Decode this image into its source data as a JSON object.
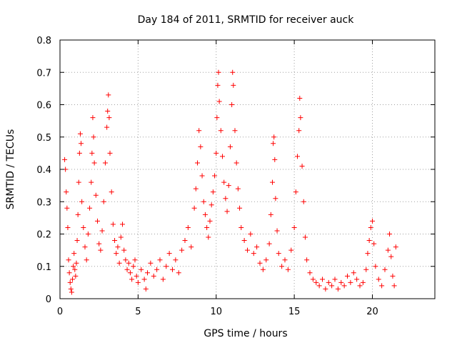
{
  "chart_data": {
    "type": "scatter",
    "title": "Day 184 of 2011, SRMTID for receiver auck",
    "xlabel": "GPS time / hours",
    "ylabel": "SRMTID / TECUs",
    "xlim": [
      0,
      24
    ],
    "ylim": [
      0,
      0.8
    ],
    "x_ticks": [
      0,
      5,
      10,
      15,
      20
    ],
    "x_tick_labels": [
      "0",
      "5",
      "10",
      "15",
      "20"
    ],
    "y_ticks": [
      0,
      0.1,
      0.2,
      0.3,
      0.4,
      0.5,
      0.6,
      0.7,
      0.8
    ],
    "y_tick_labels": [
      "0",
      "0.1",
      "0.2",
      "0.3",
      "0.4",
      "0.5",
      "0.6",
      "0.7",
      "0.8"
    ],
    "grid": true,
    "marker": "plus",
    "color": "#ff0000",
    "series": [
      {
        "name": "SRMTID",
        "points": [
          [
            0.3,
            0.43
          ],
          [
            0.35,
            0.4
          ],
          [
            0.4,
            0.33
          ],
          [
            0.45,
            0.28
          ],
          [
            0.5,
            0.22
          ],
          [
            0.55,
            0.12
          ],
          [
            0.6,
            0.08
          ],
          [
            0.65,
            0.05
          ],
          [
            0.7,
            0.03
          ],
          [
            0.75,
            0.02
          ],
          [
            0.8,
            0.06
          ],
          [
            0.85,
            0.1
          ],
          [
            0.9,
            0.14
          ],
          [
            0.95,
            0.09
          ],
          [
            1.0,
            0.07
          ],
          [
            1.05,
            0.11
          ],
          [
            1.1,
            0.18
          ],
          [
            1.15,
            0.26
          ],
          [
            1.2,
            0.36
          ],
          [
            1.25,
            0.45
          ],
          [
            1.3,
            0.51
          ],
          [
            1.35,
            0.48
          ],
          [
            1.4,
            0.3
          ],
          [
            1.5,
            0.22
          ],
          [
            1.6,
            0.16
          ],
          [
            1.7,
            0.12
          ],
          [
            1.8,
            0.2
          ],
          [
            1.9,
            0.28
          ],
          [
            2.0,
            0.36
          ],
          [
            2.05,
            0.45
          ],
          [
            2.1,
            0.56
          ],
          [
            2.15,
            0.5
          ],
          [
            2.2,
            0.42
          ],
          [
            2.3,
            0.32
          ],
          [
            2.4,
            0.24
          ],
          [
            2.5,
            0.17
          ],
          [
            2.6,
            0.15
          ],
          [
            2.7,
            0.21
          ],
          [
            2.8,
            0.3
          ],
          [
            2.9,
            0.42
          ],
          [
            3.0,
            0.53
          ],
          [
            3.05,
            0.58
          ],
          [
            3.1,
            0.63
          ],
          [
            3.15,
            0.56
          ],
          [
            3.2,
            0.45
          ],
          [
            3.3,
            0.33
          ],
          [
            3.4,
            0.23
          ],
          [
            3.5,
            0.18
          ],
          [
            3.6,
            0.14
          ],
          [
            3.7,
            0.16
          ],
          [
            3.8,
            0.11
          ],
          [
            3.9,
            0.19
          ],
          [
            4.0,
            0.23
          ],
          [
            4.1,
            0.15
          ],
          [
            4.2,
            0.12
          ],
          [
            4.3,
            0.09
          ],
          [
            4.4,
            0.11
          ],
          [
            4.5,
            0.08
          ],
          [
            4.6,
            0.06
          ],
          [
            4.7,
            0.1
          ],
          [
            4.8,
            0.12
          ],
          [
            4.9,
            0.07
          ],
          [
            5.0,
            0.05
          ],
          [
            5.2,
            0.09
          ],
          [
            5.4,
            0.06
          ],
          [
            5.5,
            0.03
          ],
          [
            5.6,
            0.08
          ],
          [
            5.8,
            0.11
          ],
          [
            6.0,
            0.07
          ],
          [
            6.2,
            0.09
          ],
          [
            6.4,
            0.12
          ],
          [
            6.6,
            0.06
          ],
          [
            6.8,
            0.1
          ],
          [
            7.0,
            0.14
          ],
          [
            7.2,
            0.09
          ],
          [
            7.4,
            0.12
          ],
          [
            7.6,
            0.08
          ],
          [
            7.8,
            0.15
          ],
          [
            8.0,
            0.18
          ],
          [
            8.2,
            0.22
          ],
          [
            8.4,
            0.16
          ],
          [
            8.6,
            0.28
          ],
          [
            8.7,
            0.34
          ],
          [
            8.8,
            0.42
          ],
          [
            8.9,
            0.52
          ],
          [
            9.0,
            0.47
          ],
          [
            9.1,
            0.38
          ],
          [
            9.2,
            0.3
          ],
          [
            9.3,
            0.26
          ],
          [
            9.4,
            0.22
          ],
          [
            9.5,
            0.19
          ],
          [
            9.6,
            0.24
          ],
          [
            9.7,
            0.29
          ],
          [
            9.8,
            0.33
          ],
          [
            9.9,
            0.38
          ],
          [
            10.0,
            0.45
          ],
          [
            10.05,
            0.56
          ],
          [
            10.1,
            0.66
          ],
          [
            10.15,
            0.7
          ],
          [
            10.2,
            0.61
          ],
          [
            10.3,
            0.52
          ],
          [
            10.4,
            0.44
          ],
          [
            10.5,
            0.36
          ],
          [
            10.6,
            0.31
          ],
          [
            10.7,
            0.27
          ],
          [
            10.8,
            0.35
          ],
          [
            10.9,
            0.47
          ],
          [
            11.0,
            0.6
          ],
          [
            11.05,
            0.7
          ],
          [
            11.1,
            0.66
          ],
          [
            11.2,
            0.52
          ],
          [
            11.3,
            0.42
          ],
          [
            11.4,
            0.34
          ],
          [
            11.5,
            0.28
          ],
          [
            11.6,
            0.22
          ],
          [
            11.8,
            0.18
          ],
          [
            12.0,
            0.15
          ],
          [
            12.2,
            0.2
          ],
          [
            12.4,
            0.14
          ],
          [
            12.6,
            0.16
          ],
          [
            12.8,
            0.11
          ],
          [
            13.0,
            0.09
          ],
          [
            13.2,
            0.12
          ],
          [
            13.4,
            0.17
          ],
          [
            13.5,
            0.26
          ],
          [
            13.6,
            0.36
          ],
          [
            13.65,
            0.48
          ],
          [
            13.7,
            0.5
          ],
          [
            13.75,
            0.43
          ],
          [
            13.8,
            0.31
          ],
          [
            13.9,
            0.21
          ],
          [
            14.0,
            0.14
          ],
          [
            14.2,
            0.1
          ],
          [
            14.4,
            0.12
          ],
          [
            14.6,
            0.09
          ],
          [
            14.8,
            0.15
          ],
          [
            15.0,
            0.22
          ],
          [
            15.1,
            0.33
          ],
          [
            15.2,
            0.44
          ],
          [
            15.3,
            0.52
          ],
          [
            15.35,
            0.62
          ],
          [
            15.4,
            0.56
          ],
          [
            15.5,
            0.41
          ],
          [
            15.6,
            0.3
          ],
          [
            15.7,
            0.19
          ],
          [
            15.8,
            0.12
          ],
          [
            16.0,
            0.08
          ],
          [
            16.2,
            0.06
          ],
          [
            16.4,
            0.05
          ],
          [
            16.6,
            0.04
          ],
          [
            16.8,
            0.06
          ],
          [
            17.0,
            0.03
          ],
          [
            17.2,
            0.05
          ],
          [
            17.4,
            0.04
          ],
          [
            17.6,
            0.06
          ],
          [
            17.8,
            0.03
          ],
          [
            18.0,
            0.05
          ],
          [
            18.2,
            0.04
          ],
          [
            18.4,
            0.07
          ],
          [
            18.6,
            0.05
          ],
          [
            18.8,
            0.08
          ],
          [
            19.0,
            0.06
          ],
          [
            19.2,
            0.04
          ],
          [
            19.4,
            0.05
          ],
          [
            19.6,
            0.09
          ],
          [
            19.7,
            0.14
          ],
          [
            19.8,
            0.18
          ],
          [
            19.9,
            0.22
          ],
          [
            20.0,
            0.24
          ],
          [
            20.1,
            0.17
          ],
          [
            20.2,
            0.1
          ],
          [
            20.4,
            0.06
          ],
          [
            20.6,
            0.04
          ],
          [
            20.8,
            0.09
          ],
          [
            21.0,
            0.15
          ],
          [
            21.1,
            0.2
          ],
          [
            21.2,
            0.13
          ],
          [
            21.3,
            0.07
          ],
          [
            21.4,
            0.04
          ],
          [
            21.5,
            0.16
          ]
        ]
      }
    ]
  }
}
